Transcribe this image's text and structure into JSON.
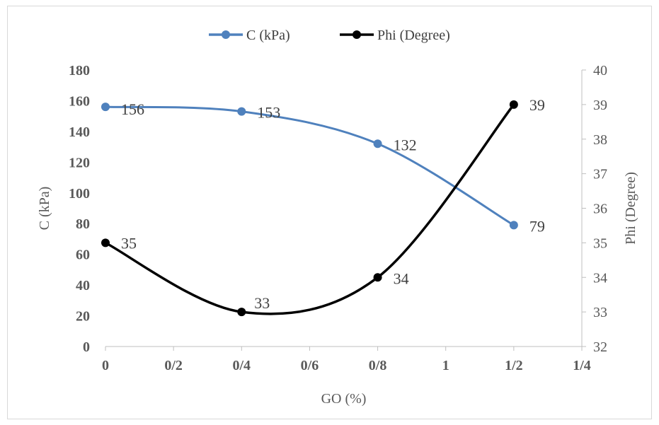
{
  "chart_data": {
    "type": "line",
    "smooth": true,
    "xlabel": "GO (%)",
    "x_tick_labels": [
      "0",
      "0/2",
      "0/4",
      "0/6",
      "0/8",
      "1",
      "1/2",
      "1/4"
    ],
    "x": [
      "0",
      "0/4",
      "0/8",
      "1/2"
    ],
    "series": [
      {
        "name": "C (kPa)",
        "axis": "left",
        "values": [
          156,
          153,
          132,
          79
        ],
        "labels": [
          "156",
          "153",
          "132",
          "79"
        ],
        "color": "#4f81bd"
      },
      {
        "name": "Phi (Degree)",
        "axis": "right",
        "values": [
          35,
          33,
          34,
          39
        ],
        "labels": [
          "35",
          "33",
          "34",
          "39"
        ],
        "color": "#000000"
      }
    ],
    "y_left": {
      "label": "C (kPa)",
      "ylim": [
        0,
        180
      ],
      "ticks": [
        "0",
        "20",
        "40",
        "60",
        "80",
        "100",
        "120",
        "140",
        "160",
        "180"
      ]
    },
    "y_right": {
      "label": "Phi (Degree)",
      "ylim": [
        32,
        40
      ],
      "ticks": [
        "32",
        "33",
        "34",
        "35",
        "36",
        "37",
        "38",
        "39",
        "40"
      ]
    },
    "legend_position": "top",
    "grid": false
  }
}
